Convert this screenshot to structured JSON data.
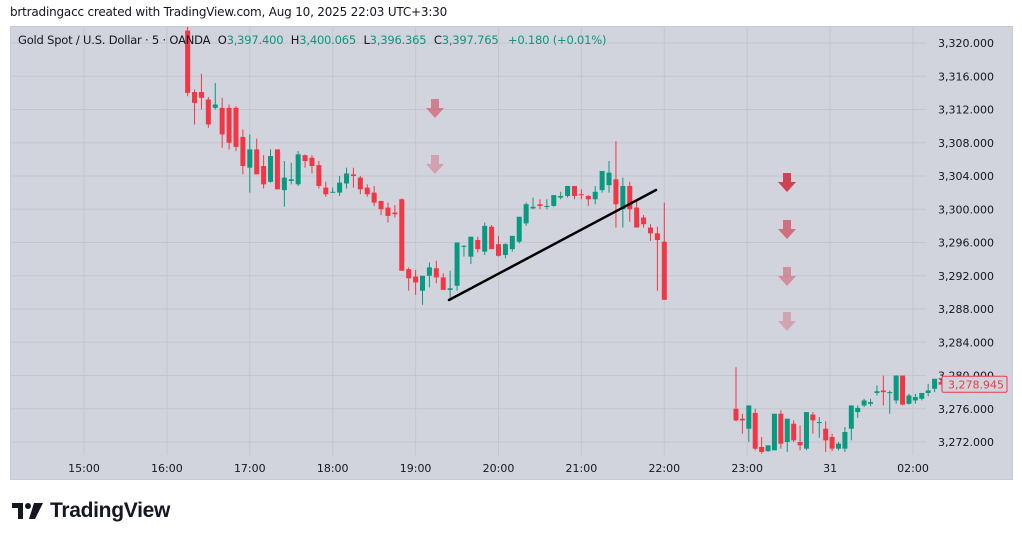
{
  "attribution": "brtradingacc created with TradingView.com, Aug 10, 2025 22:03 UTC+3:30",
  "legend": {
    "symbol": "Gold Spot / U.S. Dollar · 5 · OANDA",
    "o_label": "O",
    "o_value": "3,397.400",
    "h_label": "H",
    "h_value": "3,400.065",
    "l_label": "L",
    "l_value": "3,396.365",
    "c_label": "C",
    "c_value": "3,397.765",
    "change": "+0.180 (+0.01%)"
  },
  "footer": {
    "brand": "TradingView"
  },
  "colors": {
    "up": "#089981",
    "down": "#f23645",
    "background": "#d1d4dc",
    "grid": "#c3c6ce",
    "text": "#131722",
    "last_price": "#f23645",
    "trendline": "#000000",
    "arrow": "#d0394c"
  },
  "chart_data": {
    "type": "candlestick",
    "title": "Gold Spot / U.S. Dollar · 5 · OANDA",
    "timeframe": "5",
    "xlabel": "",
    "ylabel": "",
    "x_ticks": [
      "15:00",
      "16:00",
      "17:00",
      "18:00",
      "19:00",
      "20:00",
      "21:00",
      "22:00",
      "23:00",
      "31",
      "02:00"
    ],
    "y_ticks": [
      "3,320.000",
      "3,316.000",
      "3,312.000",
      "3,308.000",
      "3,304.000",
      "3,300.000",
      "3,296.000",
      "3,292.000",
      "3,288.000",
      "3,284.000",
      "3,280.000",
      "3,276.000",
      "3,272.000"
    ],
    "ylim": [
      3270.5,
      3321
    ],
    "grid": true,
    "last_price": "3,278.945",
    "last_price_value": 3278.945,
    "candles_start_time": "16:15",
    "candle_minutes": 5,
    "candles": [
      [
        3321.5,
        3322.0,
        3313.6,
        3314.0
      ],
      [
        3314.1,
        3314.4,
        3310.2,
        3312.8
      ],
      [
        3314.1,
        3316.3,
        3312.0,
        3313.4
      ],
      [
        3313.2,
        3313.5,
        3309.8,
        3310.2
      ],
      [
        3312.2,
        3315.2,
        3312.0,
        3312.6
      ],
      [
        3312.2,
        3313.4,
        3307.4,
        3309.0
      ],
      [
        3312.2,
        3312.6,
        3307.2,
        3308.0
      ],
      [
        3312.2,
        3312.4,
        3307.0,
        3307.5
      ],
      [
        3308.7,
        3309.6,
        3304.2,
        3305.2
      ],
      [
        3305.0,
        3309.0,
        3302.0,
        3307.2
      ],
      [
        3307.2,
        3308.5,
        3304.8,
        3304.2
      ],
      [
        3305.2,
        3306.5,
        3302.5,
        3303.0
      ],
      [
        3303.3,
        3307.2,
        3303.2,
        3306.4
      ],
      [
        3307.2,
        3307.2,
        3302.4,
        3302.4
      ],
      [
        3302.3,
        3305.8,
        3300.3,
        3303.8
      ],
      [
        3303.4,
        3305.6,
        3303.0,
        3303.6
      ],
      [
        3303.0,
        3307.0,
        3302.8,
        3306.6
      ],
      [
        3306.5,
        3306.6,
        3305.0,
        3305.8
      ],
      [
        3306.2,
        3306.5,
        3304.3,
        3305.2
      ],
      [
        3305.3,
        3305.8,
        3302.5,
        3302.8
      ],
      [
        3302.6,
        3303.3,
        3301.5,
        3301.8
      ],
      [
        3302.1,
        3302.6,
        3302.0,
        3302.1
      ],
      [
        3302.0,
        3304.0,
        3301.6,
        3303.2
      ],
      [
        3303.1,
        3305.0,
        3302.5,
        3304.3
      ],
      [
        3304.2,
        3305.0,
        3302.6,
        3304.0
      ],
      [
        3303.8,
        3304.0,
        3301.8,
        3302.4
      ],
      [
        3302.6,
        3303.0,
        3301.5,
        3301.8
      ],
      [
        3302.0,
        3302.8,
        3300.4,
        3300.8
      ],
      [
        3301.0,
        3301.0,
        3299.3,
        3300.0
      ],
      [
        3300.2,
        3300.8,
        3298.4,
        3299.2
      ],
      [
        3299.6,
        3300.5,
        3299.0,
        3299.4
      ],
      [
        3301.2,
        3301.3,
        3293.2,
        3292.6
      ],
      [
        3292.8,
        3293.0,
        3290.2,
        3291.7
      ],
      [
        3291.9,
        3292.7,
        3289.7,
        3291.2
      ],
      [
        3290.2,
        3291.8,
        3288.5,
        3292.0
      ],
      [
        3292.0,
        3293.6,
        3290.6,
        3293.0
      ],
      [
        3292.9,
        3293.8,
        3291.1,
        3291.8
      ],
      [
        3291.8,
        3292.3,
        3290.4,
        3290.3
      ],
      [
        3290.3,
        3292.6,
        3289.3,
        3290.5
      ],
      [
        3290.8,
        3296.0,
        3290.2,
        3296.0
      ],
      [
        3295.6,
        3295.7,
        3294.3,
        3295.6
      ],
      [
        3294.3,
        3296.7,
        3293.4,
        3296.7
      ],
      [
        3296.3,
        3296.7,
        3294.8,
        3295.2
      ],
      [
        3294.9,
        3298.4,
        3294.5,
        3298.0
      ],
      [
        3297.9,
        3298.1,
        3295.3,
        3295.2
      ],
      [
        3295.8,
        3296.8,
        3294.3,
        3294.4
      ],
      [
        3294.5,
        3295.9,
        3294.1,
        3295.8
      ],
      [
        3295.2,
        3296.4,
        3294.9,
        3296.8
      ],
      [
        3296.1,
        3298.2,
        3295.9,
        3299.1
      ],
      [
        3298.3,
        3300.8,
        3298.0,
        3300.6
      ],
      [
        3300.1,
        3301.4,
        3300.0,
        3300.3
      ],
      [
        3300.6,
        3301.2,
        3300.0,
        3300.4
      ],
      [
        3300.4,
        3301.2,
        3300.0,
        3300.4
      ],
      [
        3300.4,
        3301.4,
        3300.3,
        3301.7
      ],
      [
        3301.4,
        3302.1,
        3301.2,
        3301.6
      ],
      [
        3301.6,
        3302.8,
        3301.4,
        3302.8
      ],
      [
        3302.8,
        3302.8,
        3301.2,
        3301.6
      ],
      [
        3301.8,
        3302.4,
        3301.2,
        3301.7
      ],
      [
        3301.6,
        3301.7,
        3300.4,
        3301.2
      ],
      [
        3301.2,
        3302.8,
        3300.6,
        3302.1
      ],
      [
        3302.3,
        3304.2,
        3302.0,
        3304.6
      ],
      [
        3302.9,
        3305.8,
        3302.0,
        3304.4
      ],
      [
        3303.6,
        3308.2,
        3297.8,
        3300.6
      ],
      [
        3300.0,
        3303.8,
        3297.8,
        3302.8
      ],
      [
        3302.8,
        3303.3,
        3298.5,
        3300.0
      ],
      [
        3300.2,
        3301.0,
        3298.0,
        3297.8
      ],
      [
        3299.0,
        3299.3,
        3297.8,
        3298.2
      ],
      [
        3297.8,
        3298.2,
        3296.2,
        3297.1
      ],
      [
        3297.1,
        3297.9,
        3290.2,
        3296.3
      ],
      [
        3296.1,
        3300.8,
        3291.9,
        3289.1
      ]
    ],
    "annotations": {
      "trendline": {
        "from": [
          "19:25",
          3288.8
        ],
        "to": [
          "21:55",
          3302.4
        ],
        "color": "#000000"
      },
      "down_arrows_group_1": {
        "time": "19:15",
        "prices": [
          3311.8,
          3305.2
        ],
        "count": 2
      },
      "down_arrows_group_2": {
        "time": "23:25",
        "prices": [
          3303.9,
          3298.2,
          3292.6,
          3287.2
        ],
        "count": 4
      }
    }
  }
}
